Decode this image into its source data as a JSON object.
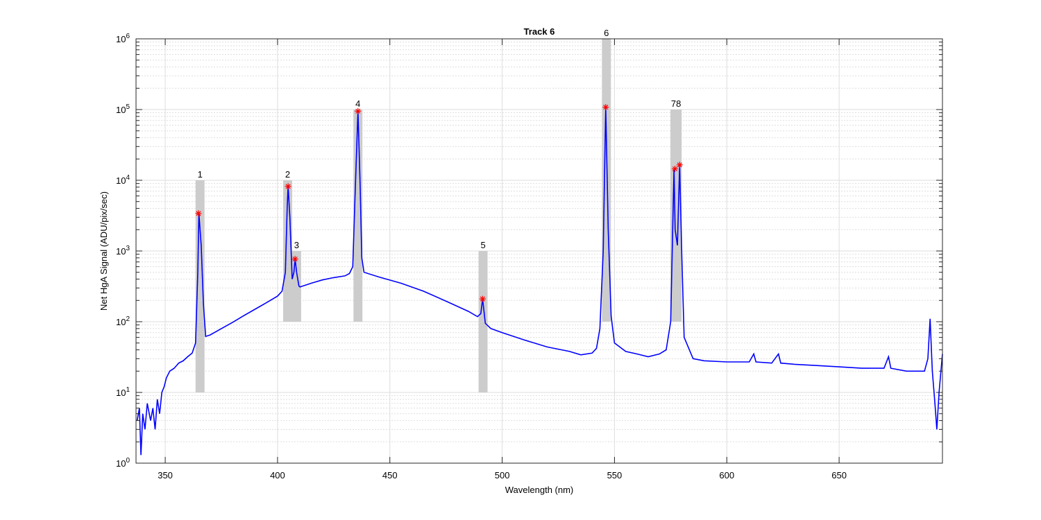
{
  "chart_data": {
    "type": "line",
    "title": "Track 6",
    "xlabel": "Wavelength (nm)",
    "ylabel": "Net HgA Signal (ADU/pix/sec)",
    "xlim": [
      337,
      696
    ],
    "ylim": [
      1,
      1000000
    ],
    "y_scale": "log",
    "x_ticks": [
      350,
      400,
      450,
      500,
      550,
      600,
      650
    ],
    "x_tick_labels": [
      "350",
      "400",
      "450",
      "500",
      "550",
      "600",
      "650"
    ],
    "y_ticks": [
      1,
      10,
      100,
      1000,
      10000,
      100000,
      1000000
    ],
    "y_tick_base": "10",
    "y_tick_exponents": [
      "0",
      "1",
      "2",
      "3",
      "4",
      "5",
      "6"
    ],
    "grid": true,
    "minor_grid": true,
    "colors": {
      "line": "#0000ff",
      "marker": "#ff0000",
      "band": "#cccccc",
      "grid": "#dddddd"
    },
    "series": [
      {
        "values": [
          [
            337.5,
            4
          ],
          [
            338.5,
            6
          ],
          [
            339.2,
            1.3
          ],
          [
            340,
            5
          ],
          [
            341,
            3
          ],
          [
            342,
            7
          ],
          [
            343.5,
            4
          ],
          [
            344.5,
            6
          ],
          [
            345.5,
            3
          ],
          [
            346.5,
            8
          ],
          [
            347.5,
            5
          ],
          [
            348.5,
            10
          ],
          [
            349.5,
            12
          ],
          [
            350.5,
            16
          ],
          [
            352,
            20
          ],
          [
            354,
            22
          ],
          [
            356,
            26
          ],
          [
            358,
            28
          ],
          [
            360,
            32
          ],
          [
            362,
            36
          ],
          [
            363.5,
            50
          ],
          [
            364.5,
            500
          ],
          [
            365,
            3400
          ],
          [
            366,
            1200
          ],
          [
            367,
            180
          ],
          [
            368,
            62
          ],
          [
            370,
            65
          ],
          [
            375,
            80
          ],
          [
            380,
            98
          ],
          [
            385,
            122
          ],
          [
            390,
            150
          ],
          [
            395,
            185
          ],
          [
            400,
            230
          ],
          [
            402,
            270
          ],
          [
            403.5,
            500
          ],
          [
            404.3,
            4000
          ],
          [
            404.7,
            8200
          ],
          [
            405.5,
            3000
          ],
          [
            406.5,
            400
          ],
          [
            407.3,
            500
          ],
          [
            407.8,
            770
          ],
          [
            408.5,
            500
          ],
          [
            409.5,
            320
          ],
          [
            410,
            310
          ],
          [
            415,
            350
          ],
          [
            420,
            390
          ],
          [
            425,
            420
          ],
          [
            430,
            445
          ],
          [
            432,
            480
          ],
          [
            433.5,
            600
          ],
          [
            434.5,
            6000
          ],
          [
            435.8,
            95000
          ],
          [
            436.8,
            8000
          ],
          [
            437.5,
            800
          ],
          [
            438.5,
            500
          ],
          [
            445,
            430
          ],
          [
            455,
            350
          ],
          [
            465,
            270
          ],
          [
            475,
            195
          ],
          [
            485,
            140
          ],
          [
            489,
            118
          ],
          [
            490.5,
            130
          ],
          [
            491.3,
            210
          ],
          [
            492.5,
            95
          ],
          [
            495,
            80
          ],
          [
            500,
            70
          ],
          [
            510,
            55
          ],
          [
            520,
            44
          ],
          [
            530,
            38
          ],
          [
            535,
            34
          ],
          [
            540,
            36
          ],
          [
            542,
            42
          ],
          [
            543.5,
            80
          ],
          [
            545,
            1000
          ],
          [
            546.1,
            108000
          ],
          [
            547.2,
            2000
          ],
          [
            548.5,
            120
          ],
          [
            550,
            50
          ],
          [
            555,
            38
          ],
          [
            560,
            35
          ],
          [
            565,
            32
          ],
          [
            570,
            35
          ],
          [
            573,
            40
          ],
          [
            575,
            100
          ],
          [
            576.5,
            14500
          ],
          [
            577,
            2000
          ],
          [
            578,
            1200
          ],
          [
            579,
            16500
          ],
          [
            580,
            800
          ],
          [
            581,
            60
          ],
          [
            585,
            30
          ],
          [
            590,
            28
          ],
          [
            600,
            27
          ],
          [
            610,
            27
          ],
          [
            612,
            35
          ],
          [
            613,
            27
          ],
          [
            620,
            26
          ],
          [
            623,
            35
          ],
          [
            624,
            26
          ],
          [
            630,
            25
          ],
          [
            640,
            24
          ],
          [
            650,
            23
          ],
          [
            660,
            22
          ],
          [
            670,
            22
          ],
          [
            672,
            32
          ],
          [
            673,
            22
          ],
          [
            680,
            20
          ],
          [
            688,
            20
          ],
          [
            689.5,
            30
          ],
          [
            690.5,
            110
          ],
          [
            691.5,
            20
          ],
          [
            692.5,
            8
          ],
          [
            693.5,
            3
          ],
          [
            694.5,
            10
          ],
          [
            696,
            35
          ]
        ]
      }
    ],
    "peaks": [
      {
        "label": "1",
        "x": 364.8,
        "y": 3400
      },
      {
        "label": "2",
        "x": 404.7,
        "y": 8200
      },
      {
        "label": "3",
        "x": 407.8,
        "y": 770
      },
      {
        "label": "4",
        "x": 435.8,
        "y": 95000
      },
      {
        "label": "5",
        "x": 491.3,
        "y": 210
      },
      {
        "label": "6",
        "x": 546.1,
        "y": 108000
      },
      {
        "label": "7",
        "x": 576.9,
        "y": 14500
      },
      {
        "label": "8",
        "x": 579.0,
        "y": 16500
      }
    ],
    "bands": [
      {
        "label": "1",
        "x0": 363.5,
        "x1": 367.5,
        "ymin": 10,
        "ymax": 10000
      },
      {
        "label": "2",
        "x0": 402.5,
        "x1": 406.5,
        "ymin": 100,
        "ymax": 10000
      },
      {
        "label": "3",
        "x0": 406.5,
        "x1": 410.5,
        "ymin": 100,
        "ymax": 1000
      },
      {
        "label": "4",
        "x0": 433.8,
        "x1": 437.8,
        "ymin": 100,
        "ymax": 100000
      },
      {
        "label": "5",
        "x0": 489.5,
        "x1": 493.5,
        "ymin": 10,
        "ymax": 1000
      },
      {
        "label": "6",
        "x0": 544.4,
        "x1": 548.4,
        "ymin": 100,
        "ymax": 1000000
      },
      {
        "label": "78",
        "x0": 574.9,
        "x1": 579.9,
        "ymin": 100,
        "ymax": 100000
      }
    ]
  }
}
